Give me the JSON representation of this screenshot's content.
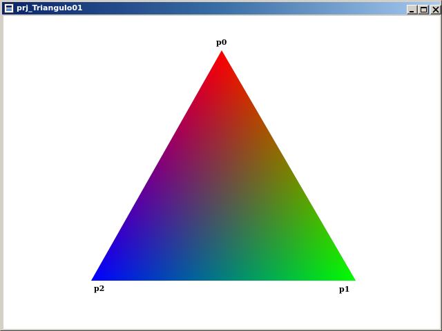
{
  "window": {
    "title": "prj_Triangulo01",
    "icons": {
      "app": "window-app-icon",
      "minimize": "minimize-icon",
      "maximize": "maximize-icon",
      "close": "close-icon"
    }
  },
  "canvas": {
    "background": "#ffffff",
    "vertices": [
      {
        "label": "p0",
        "color": "#ff0000"
      },
      {
        "label": "p1",
        "color": "#00ff00"
      },
      {
        "label": "p2",
        "color": "#0000ff"
      }
    ]
  }
}
